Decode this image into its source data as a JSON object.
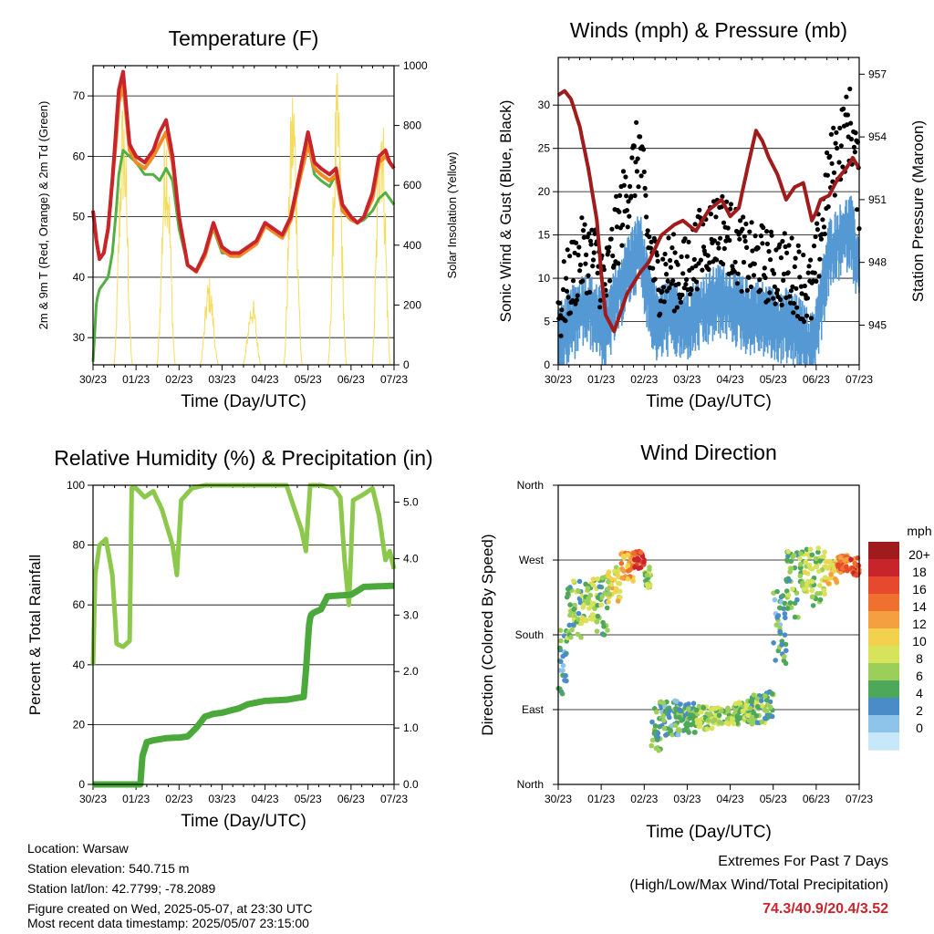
{
  "time_ticks": [
    "30/23",
    "01/23",
    "02/23",
    "03/23",
    "04/23",
    "05/23",
    "06/23",
    "07/23"
  ],
  "footer": {
    "location": "Location: Warsaw",
    "elevation": "Station elevation: 540.715 m",
    "latlon": "Station lat/lon: 42.7799; -78.2089",
    "created": "Figure created on Wed, 2025-05-07, at 23:30 UTC",
    "recent": "Most recent data timestamp: 2025/05/07 23:15:00"
  },
  "extremes": {
    "title": "Extremes For Past 7 Days",
    "subtitle": "(High/Low/Max Wind/Total Precipitation)",
    "values": "74.3/40.9/20.4/3.52"
  },
  "chart_data": [
    {
      "type": "line",
      "title": "Temperature (F)",
      "xlabel": "Time (Day/UTC)",
      "ylabel": "2m & 9m T (Red, Orange) & 2m Td (Green)",
      "y2label": "Solar Insolation (Yellow)",
      "ylim": [
        25.5,
        75
      ],
      "y2lim": [
        0,
        1000
      ],
      "yticks": [
        30,
        40,
        50,
        60,
        70
      ],
      "y2ticks": [
        0,
        200,
        400,
        600,
        800,
        1000
      ],
      "grid": true,
      "x_days": [
        0.0,
        0.08,
        0.15,
        0.25,
        0.35,
        0.45,
        0.55,
        0.6,
        0.7,
        0.85,
        1.0,
        1.2,
        1.4,
        1.55,
        1.7,
        1.85,
        2.0,
        2.2,
        2.4,
        2.6,
        2.8,
        3.0,
        3.2,
        3.4,
        3.6,
        3.8,
        4.0,
        4.2,
        4.4,
        4.6,
        4.8,
        5.0,
        5.15,
        5.3,
        5.5,
        5.65,
        5.8,
        6.0,
        6.15,
        6.3,
        6.5,
        6.65,
        6.8,
        6.9,
        7.0
      ],
      "series": [
        {
          "color": "#c8242b",
          "values": [
            51,
            46,
            43,
            44,
            48,
            56,
            66,
            71,
            74,
            62,
            60,
            59,
            61,
            64,
            66,
            60,
            50,
            42,
            41,
            44,
            49,
            45,
            44,
            44,
            45,
            46,
            49,
            48,
            47,
            50,
            57,
            64,
            59,
            58,
            57,
            58,
            52,
            50,
            49,
            50,
            54,
            60,
            61,
            59,
            58
          ]
        },
        {
          "color": "#f08a24",
          "values": [
            51,
            46,
            43,
            44,
            48,
            56,
            64,
            69,
            72,
            61,
            59,
            58,
            60,
            62,
            64,
            59,
            50,
            42,
            40.9,
            43.5,
            48.5,
            44.5,
            43.5,
            43.5,
            44.5,
            45.5,
            48.5,
            47.5,
            46.5,
            49.5,
            56,
            62,
            58,
            57,
            56,
            57,
            51,
            49.5,
            49,
            50,
            53,
            59,
            60,
            59,
            58
          ]
        },
        {
          "color": "#52b043",
          "values": [
            26,
            36,
            38,
            39,
            40,
            44,
            52,
            57,
            61,
            60,
            59,
            57,
            57,
            56,
            58,
            56,
            48,
            42,
            41,
            44,
            48,
            44,
            44,
            44,
            45,
            46,
            49,
            48,
            47,
            50,
            56,
            62,
            57,
            56,
            55,
            57,
            51,
            49.5,
            49,
            49.5,
            51,
            53,
            54,
            53,
            52
          ]
        }
      ],
      "solar_peaks": [
        {
          "day": 0.7,
          "max": 920
        },
        {
          "day": 1.7,
          "max": 850
        },
        {
          "day": 2.7,
          "max": 300
        },
        {
          "day": 3.7,
          "max": 230
        },
        {
          "day": 4.65,
          "max": 980
        },
        {
          "day": 5.68,
          "max": 980
        },
        {
          "day": 6.7,
          "max": 970
        }
      ]
    },
    {
      "type": "line",
      "title": "Winds (mph) & Pressure (mb)",
      "xlabel": "Time (Day/UTC)",
      "ylabel": "Sonic Wind & Gust (Blue, Black)",
      "y2label": "Station Pressure (Maroon)",
      "ylim": [
        0,
        35.5
      ],
      "y2lim": [
        943.1,
        957.8
      ],
      "yticks": [
        0,
        5,
        10,
        15,
        20,
        25,
        30
      ],
      "y2ticks": [
        945,
        948,
        951,
        954,
        957
      ],
      "grid": true,
      "pressure": {
        "color": "#a01c1c",
        "x_days": [
          0.0,
          0.15,
          0.3,
          0.5,
          0.7,
          0.9,
          1.0,
          1.1,
          1.3,
          1.6,
          1.9,
          2.1,
          2.4,
          2.7,
          2.9,
          3.2,
          3.5,
          3.8,
          4.0,
          4.2,
          4.4,
          4.6,
          4.75,
          4.9,
          5.1,
          5.3,
          5.5,
          5.7,
          5.9,
          6.0,
          6.1,
          6.3,
          6.5,
          6.7,
          6.85,
          7.0
        ],
        "values": [
          956.0,
          956.2,
          955.8,
          954.5,
          952.5,
          950.0,
          947.5,
          945.5,
          944.7,
          946.5,
          947.5,
          948.0,
          949.3,
          949.8,
          950.0,
          949.5,
          950.5,
          951.0,
          950.2,
          950.6,
          952.5,
          954.3,
          953.8,
          953.0,
          952.2,
          951.0,
          951.6,
          951.8,
          950.0,
          950.4,
          951.0,
          951.2,
          952.0,
          952.5,
          953.0,
          952.5
        ]
      },
      "wind": {
        "color": "#5599d4",
        "x_days": [
          0.0,
          0.3,
          0.6,
          0.9,
          1.1,
          1.3,
          1.6,
          1.9,
          2.1,
          2.3,
          2.6,
          2.9,
          3.2,
          3.5,
          3.8,
          4.1,
          4.4,
          4.7,
          5.0,
          5.3,
          5.6,
          5.9,
          6.1,
          6.3,
          6.6,
          6.8,
          7.0
        ],
        "values": [
          4,
          6,
          8,
          7,
          5,
          8,
          12,
          15,
          9,
          6,
          7,
          6,
          7,
          8,
          9,
          8,
          7,
          7,
          6,
          6,
          5,
          3,
          8,
          14,
          16,
          17,
          12
        ]
      },
      "gust": {
        "color": "#000000",
        "x_days": [
          0.0,
          0.3,
          0.6,
          0.9,
          1.1,
          1.3,
          1.6,
          1.9,
          2.1,
          2.3,
          2.6,
          2.9,
          3.2,
          3.5,
          3.8,
          4.1,
          4.4,
          4.7,
          5.0,
          5.3,
          5.6,
          5.9,
          6.1,
          6.3,
          6.6,
          6.8,
          7.0
        ],
        "values": [
          6,
          10,
          13,
          12,
          9,
          14,
          20,
          25,
          14,
          10,
          11,
          10,
          13,
          15,
          16,
          14,
          12,
          12,
          11,
          11,
          10,
          8,
          15,
          22,
          26,
          28,
          20
        ]
      }
    },
    {
      "type": "line",
      "title": "Relative Humidity (%) & Precipitation (in)",
      "xlabel": "Time (Day/UTC)",
      "ylabel": "Percent & Total Rainfall",
      "ylim": [
        0,
        100
      ],
      "y2lim": [
        0,
        5.3
      ],
      "yticks": [
        0,
        20,
        40,
        60,
        80,
        100
      ],
      "y2ticks": [
        "0.0",
        "1.0",
        "2.0",
        "3.0",
        "4.0",
        "5.0"
      ],
      "grid": true,
      "series": [
        {
          "color": "#8cc84b",
          "x_days": [
            0.0,
            0.05,
            0.15,
            0.3,
            0.45,
            0.55,
            0.7,
            0.85,
            0.9,
            1.0,
            1.2,
            1.4,
            1.6,
            1.85,
            1.95,
            2.05,
            2.3,
            2.6,
            3.0,
            3.5,
            4.0,
            4.5,
            4.85,
            4.95,
            5.05,
            5.3,
            5.6,
            5.75,
            5.85,
            5.95,
            6.05,
            6.3,
            6.5,
            6.65,
            6.8,
            6.9,
            7.0
          ],
          "values": [
            40,
            70,
            80,
            82,
            70,
            47,
            46,
            48,
            99,
            99,
            96,
            98,
            92,
            80,
            70,
            95,
            99,
            100,
            100,
            100,
            100,
            100,
            85,
            78,
            100,
            100,
            99,
            96,
            75,
            60,
            95,
            97,
            99,
            90,
            75,
            78,
            72
          ]
        },
        {
          "color": "#4aa93a",
          "x_days": [
            0.0,
            1.1,
            1.15,
            1.25,
            1.4,
            1.7,
            2.0,
            2.2,
            2.4,
            2.6,
            2.8,
            3.0,
            3.4,
            3.6,
            3.8,
            4.0,
            4.5,
            4.9,
            4.97,
            5.02,
            5.06,
            5.15,
            5.3,
            5.45,
            5.6,
            6.0,
            6.3,
            7.0
          ],
          "values": [
            0,
            0,
            0.5,
            0.75,
            0.78,
            0.82,
            0.83,
            0.85,
            1.0,
            1.2,
            1.25,
            1.27,
            1.35,
            1.42,
            1.45,
            1.48,
            1.5,
            1.55,
            2.2,
            2.8,
            3.0,
            3.05,
            3.1,
            3.33,
            3.34,
            3.36,
            3.5,
            3.52
          ]
        }
      ]
    },
    {
      "type": "scatter",
      "title": "Wind Direction",
      "xlabel": "Time (Day/UTC)",
      "ylabel": "Direction (Colored By Speed)",
      "yticks": [
        "North",
        "East",
        "South",
        "West",
        "North"
      ],
      "ylim": [
        0,
        360
      ],
      "grid": true,
      "legend": {
        "title": "mph",
        "labels": [
          "20+",
          "18",
          "16",
          "14",
          "12",
          "10",
          "8",
          "6",
          "4",
          "2",
          "0"
        ],
        "colors": [
          "#a01c1c",
          "#c8242b",
          "#e64a2e",
          "#f07030",
          "#f5a040",
          "#f2d24d",
          "#d7e35a",
          "#9ccf5a",
          "#4ea85a",
          "#4a8cc8",
          "#8ec3ea",
          "#c6e8f8"
        ]
      },
      "bins": [
        {
          "day0": 0.0,
          "day1": 0.2,
          "dir": 150,
          "spd": 5,
          "spread": 60
        },
        {
          "day0": 0.2,
          "day1": 0.55,
          "dir": 210,
          "spd": 7,
          "spread": 50
        },
        {
          "day0": 0.55,
          "day1": 0.9,
          "dir": 220,
          "spd": 9,
          "spread": 40
        },
        {
          "day0": 0.9,
          "day1": 1.15,
          "dir": 215,
          "spd": 7,
          "spread": 50
        },
        {
          "day0": 1.15,
          "day1": 1.45,
          "dir": 240,
          "spd": 11,
          "spread": 30
        },
        {
          "day0": 1.45,
          "day1": 1.75,
          "dir": 262,
          "spd": 14,
          "spread": 25
        },
        {
          "day0": 1.75,
          "day1": 2.0,
          "dir": 270,
          "spd": 18,
          "spread": 15
        },
        {
          "day0": 2.0,
          "day1": 2.15,
          "dir": 250,
          "spd": 8,
          "spread": 20
        },
        {
          "day0": 2.15,
          "day1": 2.4,
          "dir": 70,
          "spd": 6,
          "spread": 45
        },
        {
          "day0": 2.4,
          "day1": 2.8,
          "dir": 80,
          "spd": 5,
          "spread": 30
        },
        {
          "day0": 2.8,
          "day1": 3.2,
          "dir": 80,
          "spd": 6,
          "spread": 25
        },
        {
          "day0": 3.2,
          "day1": 3.6,
          "dir": 80,
          "spd": 8,
          "spread": 20
        },
        {
          "day0": 3.6,
          "day1": 4.0,
          "dir": 82,
          "spd": 9,
          "spread": 15
        },
        {
          "day0": 4.0,
          "day1": 4.4,
          "dir": 85,
          "spd": 8,
          "spread": 20
        },
        {
          "day0": 4.4,
          "day1": 4.8,
          "dir": 90,
          "spd": 7,
          "spread": 25
        },
        {
          "day0": 4.8,
          "day1": 5.0,
          "dir": 95,
          "spd": 6,
          "spread": 25
        },
        {
          "day0": 5.0,
          "day1": 5.3,
          "dir": 190,
          "spd": 5,
          "spread": 70
        },
        {
          "day0": 5.3,
          "day1": 5.6,
          "dir": 240,
          "spd": 7,
          "spread": 60
        },
        {
          "day0": 5.6,
          "day1": 5.9,
          "dir": 260,
          "spd": 9,
          "spread": 40
        },
        {
          "day0": 5.9,
          "day1": 6.2,
          "dir": 250,
          "spd": 8,
          "spread": 50
        },
        {
          "day0": 6.2,
          "day1": 6.5,
          "dir": 255,
          "spd": 12,
          "spread": 20
        },
        {
          "day0": 6.5,
          "day1": 6.8,
          "dir": 265,
          "spd": 16,
          "spread": 15
        },
        {
          "day0": 6.8,
          "day1": 7.0,
          "dir": 262,
          "spd": 17,
          "spread": 15
        }
      ]
    }
  ]
}
